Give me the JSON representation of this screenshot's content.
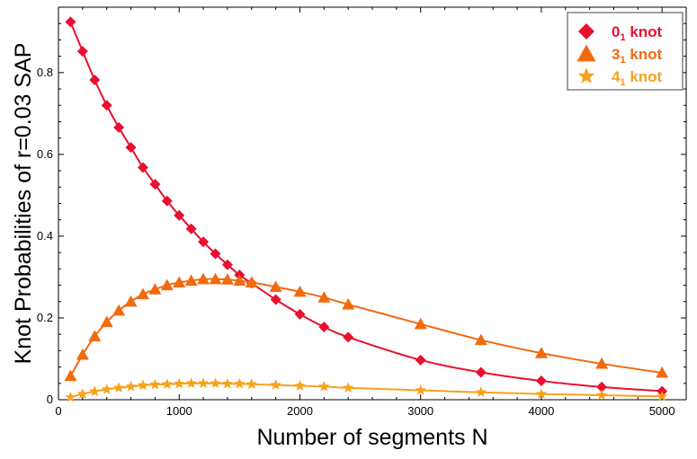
{
  "chart_data": {
    "type": "line",
    "title": "",
    "xlabel": "Number of segments N",
    "ylabel": "Knot Probabilities of r=0.03 SAP",
    "xlim": [
      0,
      5200
    ],
    "ylim": [
      0,
      0.96
    ],
    "xticks": [
      0,
      1000,
      2000,
      3000,
      4000,
      5000
    ],
    "xtick_labels": [
      "0",
      "1000",
      "2000",
      "3000",
      "4000",
      "5000"
    ],
    "yticks": [
      0,
      0.2,
      0.4,
      0.6,
      0.8
    ],
    "ytick_labels": [
      "0",
      "0.2",
      "0.4",
      "0.6",
      "0.8"
    ],
    "grid": false,
    "legend_position": "top-right",
    "series": [
      {
        "name_base": "0",
        "name_sub": "1",
        "name_suffix": " knot",
        "color": "#e8102e",
        "marker": "diamond",
        "x": [
          100,
          200,
          300,
          400,
          500,
          600,
          700,
          800,
          900,
          1000,
          1100,
          1200,
          1300,
          1400,
          1500,
          1600,
          1800,
          2000,
          2200,
          2400,
          3000,
          3500,
          4000,
          4500,
          5000
        ],
        "y": [
          0.924,
          0.852,
          0.782,
          0.72,
          0.666,
          0.617,
          0.568,
          0.527,
          0.486,
          0.451,
          0.418,
          0.386,
          0.357,
          0.33,
          0.305,
          0.285,
          0.245,
          0.209,
          0.178,
          0.153,
          0.097,
          0.067,
          0.046,
          0.031,
          0.021
        ]
      },
      {
        "name_base": "3",
        "name_sub": "1",
        "name_suffix": " knot",
        "color": "#f26a0f",
        "marker": "triangle",
        "x": [
          100,
          200,
          300,
          400,
          500,
          600,
          700,
          800,
          900,
          1000,
          1100,
          1200,
          1300,
          1400,
          1500,
          1600,
          1800,
          2000,
          2200,
          2400,
          3000,
          3500,
          4000,
          4500,
          5000
        ],
        "y": [
          0.058,
          0.11,
          0.155,
          0.19,
          0.218,
          0.24,
          0.258,
          0.27,
          0.28,
          0.287,
          0.291,
          0.295,
          0.295,
          0.294,
          0.291,
          0.287,
          0.276,
          0.264,
          0.25,
          0.233,
          0.185,
          0.146,
          0.114,
          0.088,
          0.066
        ]
      },
      {
        "name_base": "4",
        "name_sub": "1",
        "name_suffix": " knot",
        "color": "#f7a21b",
        "marker": "star",
        "x": [
          100,
          200,
          300,
          400,
          500,
          600,
          700,
          800,
          900,
          1000,
          1100,
          1200,
          1300,
          1400,
          1500,
          1600,
          1800,
          2000,
          2200,
          2400,
          3000,
          3500,
          4000,
          4500,
          5000
        ],
        "y": [
          0.006,
          0.014,
          0.02,
          0.025,
          0.029,
          0.032,
          0.035,
          0.037,
          0.038,
          0.039,
          0.04,
          0.04,
          0.04,
          0.039,
          0.039,
          0.038,
          0.036,
          0.034,
          0.032,
          0.029,
          0.023,
          0.018,
          0.014,
          0.011,
          0.008
        ]
      }
    ]
  }
}
